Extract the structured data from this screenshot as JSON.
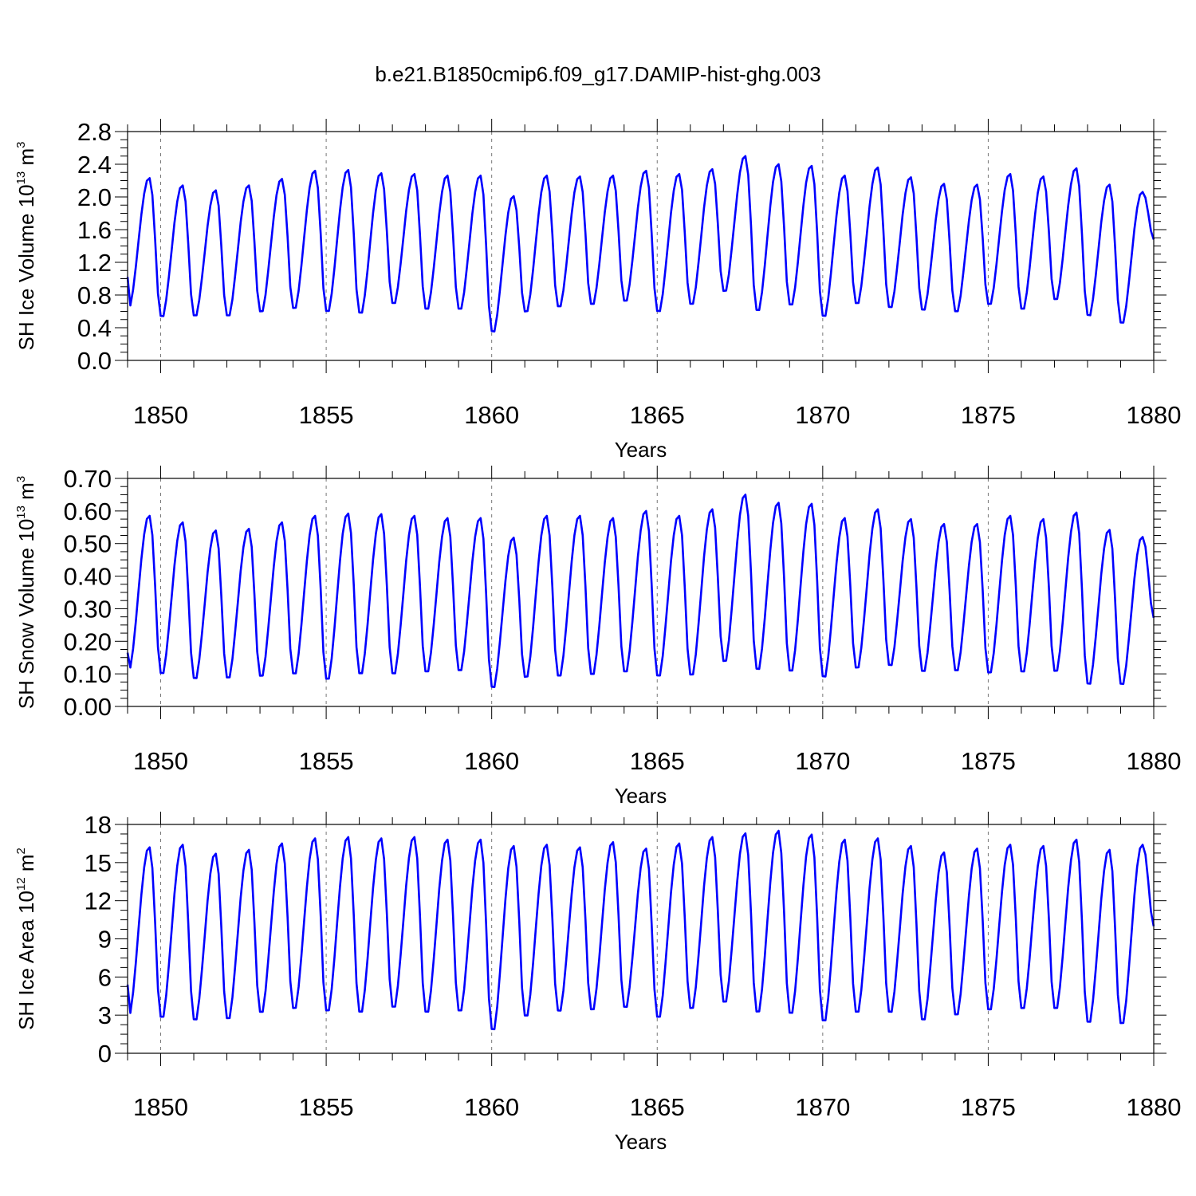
{
  "figure_title": "b.e21.B1850cmip6.f09_g17.DAMIP-hist-ghg.003",
  "chart_data": [
    {
      "type": "line",
      "ylabel_parts": [
        "SH Ice Volume 10",
        "13",
        " m",
        "3"
      ],
      "xlabel": "Years",
      "xlim": [
        1849.0,
        1880.0
      ],
      "ylim": [
        0.0,
        2.8
      ],
      "yticks": [
        0.0,
        0.4,
        0.8,
        1.2,
        1.6,
        2.0,
        2.4,
        2.8
      ],
      "ytick_labels": [
        "0.0",
        "0.4",
        "0.8",
        "1.2",
        "1.6",
        "2.0",
        "2.4",
        "2.8"
      ],
      "xticks": [
        1850,
        1855,
        1860,
        1865,
        1870,
        1875,
        1880
      ],
      "xtick_labels": [
        "1850",
        "1855",
        "1860",
        "1865",
        "1870",
        "1875",
        "1880"
      ],
      "xgrid_dashed": [
        1850,
        1855,
        1860,
        1865,
        1870,
        1875
      ],
      "color": "#0000ff",
      "series": [
        {
          "x_start": 1849.0,
          "x_step": 0.08333,
          "peaks": [
            2.23,
            2.14,
            2.08,
            2.14,
            2.22,
            2.32,
            2.33,
            2.29,
            2.28,
            2.26,
            2.26,
            2.01,
            2.26,
            2.25,
            2.26,
            2.32,
            2.28,
            2.34,
            2.5,
            2.4,
            2.38,
            2.26,
            2.36,
            2.24,
            2.16,
            2.15,
            2.28,
            2.25,
            2.35,
            2.15,
            2.06
          ],
          "troughs": [
            0.64,
            0.51,
            0.52,
            0.52,
            0.57,
            0.61,
            0.57,
            0.55,
            0.67,
            0.6,
            0.6,
            0.32,
            0.57,
            0.63,
            0.66,
            0.7,
            0.57,
            0.66,
            0.82,
            0.58,
            0.65,
            0.51,
            0.67,
            0.62,
            0.59,
            0.57,
            0.66,
            0.6,
            0.72,
            0.52,
            0.43
          ],
          "first_value": 1.02,
          "last_value": 1.48
        }
      ]
    },
    {
      "type": "line",
      "ylabel_parts": [
        "SH Snow Volume 10",
        "13",
        " m",
        "3"
      ],
      "xlabel": "Years",
      "xlim": [
        1849.0,
        1880.0
      ],
      "ylim": [
        0.0,
        0.7
      ],
      "yticks": [
        0.0,
        0.1,
        0.2,
        0.3,
        0.4,
        0.5,
        0.6,
        0.7
      ],
      "ytick_labels": [
        "0.00",
        "0.10",
        "0.20",
        "0.30",
        "0.40",
        "0.50",
        "0.60",
        "0.70"
      ],
      "xticks": [
        1850,
        1855,
        1860,
        1865,
        1870,
        1875,
        1880
      ],
      "xtick_labels": [
        "1850",
        "1855",
        "1860",
        "1865",
        "1870",
        "1875",
        "1880"
      ],
      "xgrid_dashed": [
        1850,
        1855,
        1860,
        1865,
        1870,
        1875
      ],
      "color": "#0000ff",
      "series": [
        {
          "x_start": 1849.0,
          "x_step": 0.08333,
          "peaks": [
            0.585,
            0.565,
            0.54,
            0.545,
            0.565,
            0.585,
            0.592,
            0.59,
            0.585,
            0.578,
            0.578,
            0.518,
            0.585,
            0.585,
            0.578,
            0.6,
            0.585,
            0.605,
            0.65,
            0.625,
            0.622,
            0.578,
            0.605,
            0.575,
            0.56,
            0.56,
            0.585,
            0.575,
            0.595,
            0.542,
            0.52
          ],
          "troughs": [
            0.11,
            0.093,
            0.078,
            0.08,
            0.085,
            0.092,
            0.075,
            0.092,
            0.092,
            0.098,
            0.102,
            0.05,
            0.082,
            0.085,
            0.09,
            0.098,
            0.085,
            0.088,
            0.13,
            0.105,
            0.1,
            0.082,
            0.11,
            0.118,
            0.1,
            0.102,
            0.095,
            0.098,
            0.1,
            0.06,
            0.06
          ],
          "first_value": 0.165,
          "last_value": 0.272
        }
      ]
    },
    {
      "type": "line",
      "ylabel_parts": [
        "SH Ice Area 10",
        "12",
        " m",
        "2"
      ],
      "xlabel": "Years",
      "xlim": [
        1849.0,
        1880.0
      ],
      "ylim": [
        0,
        18
      ],
      "yticks": [
        0,
        3,
        6,
        9,
        12,
        15,
        18
      ],
      "ytick_labels": [
        "0",
        "3",
        "6",
        "9",
        "12",
        "15",
        "18"
      ],
      "xticks": [
        1850,
        1855,
        1860,
        1865,
        1870,
        1875,
        1880
      ],
      "xtick_labels": [
        "1850",
        "1855",
        "1860",
        "1865",
        "1870",
        "1875",
        "1880"
      ],
      "xgrid_dashed": [
        1850,
        1855,
        1860,
        1865,
        1870,
        1875
      ],
      "color": "#0000ff",
      "series": [
        {
          "x_start": 1849.0,
          "x_step": 0.08333,
          "peaks": [
            16.2,
            16.4,
            15.7,
            16.0,
            16.5,
            16.9,
            17.0,
            16.9,
            17.0,
            16.8,
            16.8,
            16.3,
            16.4,
            16.2,
            16.6,
            16.1,
            16.5,
            17.0,
            17.3,
            17.5,
            17.2,
            16.8,
            16.9,
            16.3,
            15.8,
            16.1,
            16.4,
            16.3,
            16.8,
            16.0,
            16.4
          ],
          "troughs": [
            2.9,
            2.6,
            2.4,
            2.5,
            3.0,
            3.3,
            3.1,
            3.0,
            3.4,
            3.0,
            3.1,
            1.6,
            2.7,
            3.1,
            3.2,
            3.4,
            2.6,
            3.3,
            3.8,
            3.0,
            2.9,
            2.3,
            3.0,
            3.0,
            2.4,
            2.8,
            3.2,
            3.3,
            3.3,
            2.2,
            2.1
          ],
          "first_value": 5.4,
          "last_value": 10.0
        }
      ]
    }
  ]
}
